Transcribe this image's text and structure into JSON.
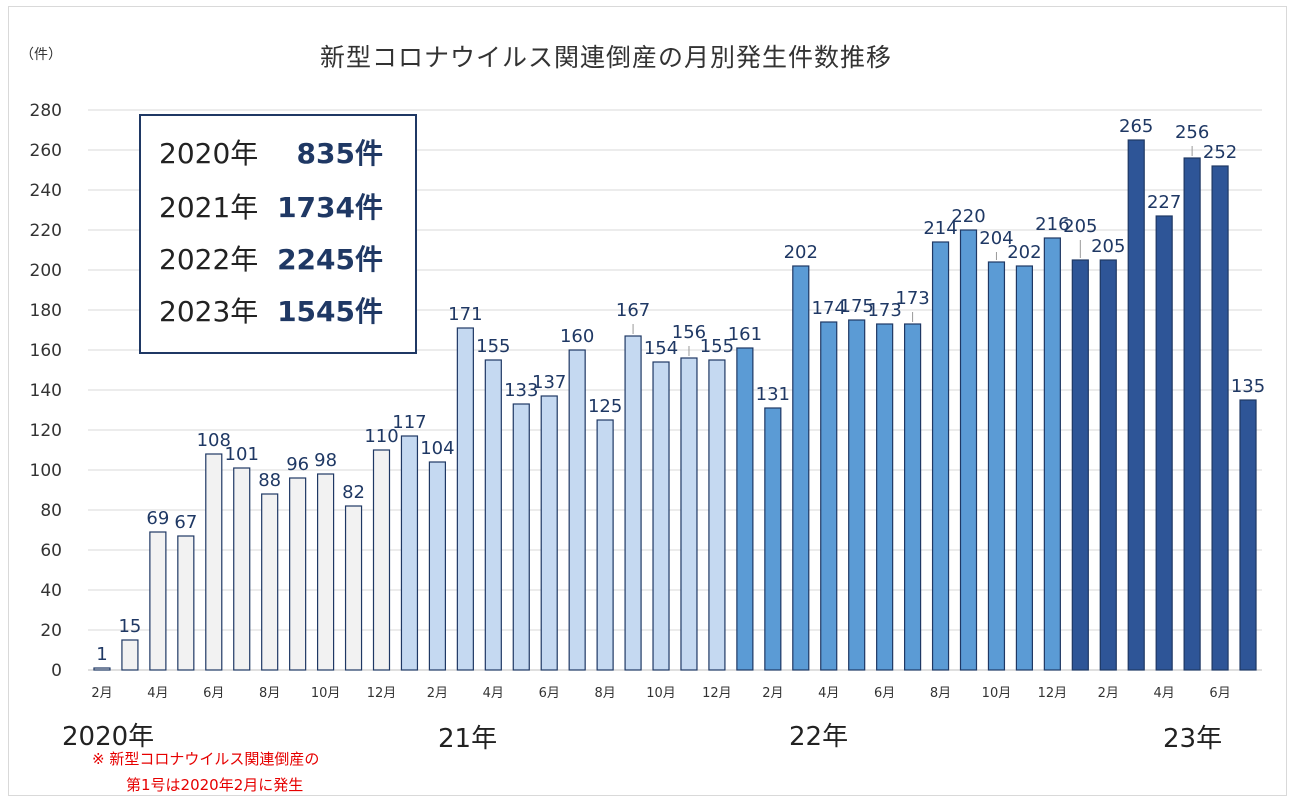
{
  "title": "新型コロナウイルス関連倒産の月別発生件数推移",
  "y_unit": "（件）",
  "summary": [
    {
      "year": "2020年",
      "count": "835件"
    },
    {
      "year": "2021年",
      "count": "1734件"
    },
    {
      "year": "2022年",
      "count": "2245件"
    },
    {
      "year": "2023年",
      "count": "1545件"
    }
  ],
  "year_labels": {
    "y2020": "2020年",
    "y2021": "21年",
    "y2022": "22年",
    "y2023": "23年"
  },
  "note": {
    "line1": "※ 新型コロナウイルス関連倒産の",
    "line2": "第1号は2020年2月に発生"
  },
  "colors": {
    "y2020": "#f2f2f2",
    "y2021": "#c5d9f1",
    "y2022": "#5b9bd5",
    "y2023": "#2e5597",
    "bar_border": "#1f3864",
    "label": "#1f3864",
    "grid": "#d9d9d9"
  },
  "chart_data": {
    "type": "bar",
    "title": "新型コロナウイルス関連倒産の月別発生件数推移",
    "ylabel": "（件）",
    "ylim": [
      0,
      280
    ],
    "yticks": [
      0,
      20,
      40,
      60,
      80,
      100,
      120,
      140,
      160,
      180,
      200,
      220,
      240,
      260,
      280
    ],
    "grid": true,
    "categories": [
      "2020-02",
      "2020-03",
      "2020-04",
      "2020-05",
      "2020-06",
      "2020-07",
      "2020-08",
      "2020-09",
      "2020-10",
      "2020-11",
      "2020-12",
      "2021-01",
      "2021-02",
      "2021-03",
      "2021-04",
      "2021-05",
      "2021-06",
      "2021-07",
      "2021-08",
      "2021-09",
      "2021-10",
      "2021-11",
      "2021-12",
      "2022-01",
      "2022-02",
      "2022-03",
      "2022-04",
      "2022-05",
      "2022-06",
      "2022-07",
      "2022-08",
      "2022-09",
      "2022-10",
      "2022-11",
      "2022-12",
      "2023-01",
      "2023-02",
      "2023-03",
      "2023-04",
      "2023-05",
      "2023-06",
      "2023-07"
    ],
    "values": [
      1,
      15,
      69,
      67,
      108,
      101,
      88,
      96,
      98,
      82,
      110,
      117,
      104,
      171,
      155,
      133,
      137,
      160,
      125,
      167,
      154,
      156,
      155,
      161,
      131,
      202,
      174,
      175,
      173,
      173,
      214,
      220,
      204,
      202,
      216,
      205,
      205,
      265,
      227,
      256,
      252,
      135
    ],
    "year_group": [
      2020,
      2020,
      2020,
      2020,
      2020,
      2020,
      2020,
      2020,
      2020,
      2020,
      2020,
      2021,
      2021,
      2021,
      2021,
      2021,
      2021,
      2021,
      2021,
      2021,
      2021,
      2021,
      2021,
      2022,
      2022,
      2022,
      2022,
      2022,
      2022,
      2022,
      2022,
      2022,
      2022,
      2022,
      2022,
      2023,
      2023,
      2023,
      2023,
      2023,
      2023,
      2023
    ],
    "x_tick_labels": [
      "2月",
      "",
      "4月",
      "",
      "6月",
      "",
      "8月",
      "",
      "10月",
      "",
      "12月",
      "",
      "2月",
      "",
      "4月",
      "",
      "6月",
      "",
      "8月",
      "",
      "10月",
      "",
      "12月",
      "",
      "2月",
      "",
      "4月",
      "",
      "6月",
      "",
      "8月",
      "",
      "10月",
      "",
      "12月",
      "",
      "2月",
      "",
      "4月",
      "",
      "6月",
      ""
    ]
  }
}
